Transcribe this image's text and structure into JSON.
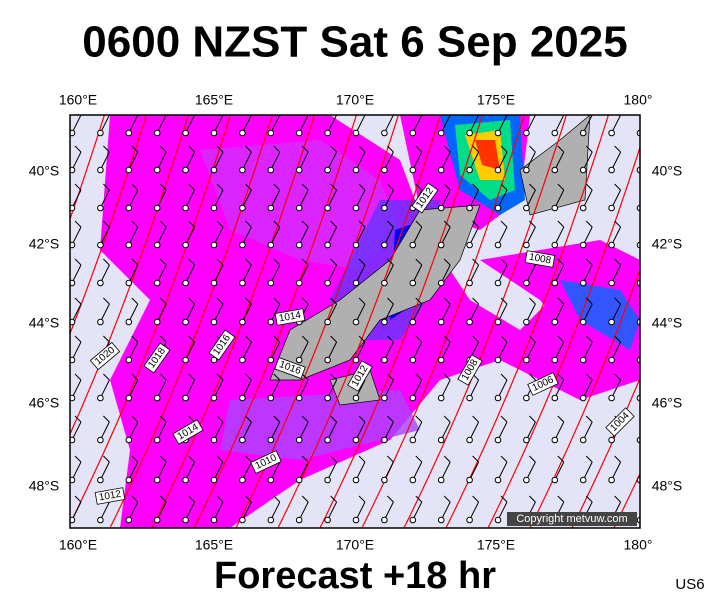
{
  "title": "0600 NZST Sat 6 Sep 2025",
  "longitude_labels": [
    "160°E",
    "165°E",
    "170°E",
    "175°E",
    "180°"
  ],
  "latitude_labels": [
    "40°S",
    "42°S",
    "44°S",
    "46°S",
    "48°S"
  ],
  "isobar_labels": [
    "1012",
    "1008",
    "1014",
    "1016",
    "1012",
    "1008",
    "1006",
    "1004",
    "1020",
    "1018",
    "1016",
    "1014",
    "1010",
    "1012"
  ],
  "copyright": "Copyright metvuw.com",
  "forecast": "Forecast +18 hr",
  "code": "US6"
}
